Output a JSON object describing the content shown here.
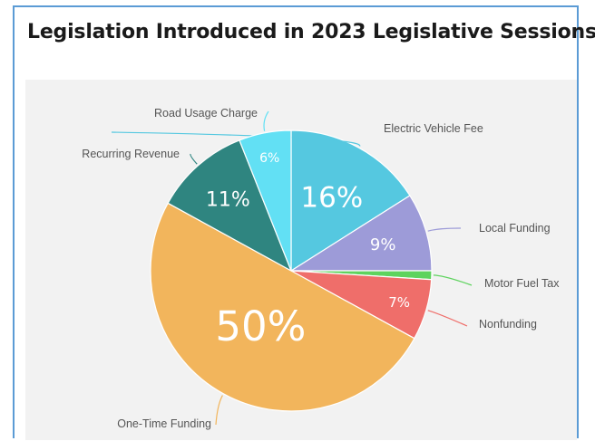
{
  "chart_data": {
    "type": "pie",
    "title": "Legislation Introduced in 2023 Legislative Sessions",
    "slices": [
      {
        "label": "Electric Vehicle Fee",
        "value": 16,
        "value_label": "16%",
        "color": "#55c8e0"
      },
      {
        "label": "Local Funding",
        "value": 9,
        "value_label": "9%",
        "color": "#9d9bd8"
      },
      {
        "label": "Motor Fuel Tax",
        "value": 1,
        "value_label": "",
        "color": "#5ed35e"
      },
      {
        "label": "Nonfunding",
        "value": 7,
        "value_label": "7%",
        "color": "#ef6e6a"
      },
      {
        "label": "One-Time Funding",
        "value": 50,
        "value_label": "50%",
        "color": "#f2b55c"
      },
      {
        "label": "Recurring Revenue",
        "value": 11,
        "value_label": "11%",
        "color": "#2f8580"
      },
      {
        "label": "Road Usage Charge",
        "value": 6,
        "value_label": "6%",
        "color": "#62e0f4"
      }
    ],
    "legend": "none",
    "labels": "outside with leader lines"
  },
  "colors": {
    "frame_border": "#5b9bd5",
    "plot_background": "#f2f2f2"
  }
}
